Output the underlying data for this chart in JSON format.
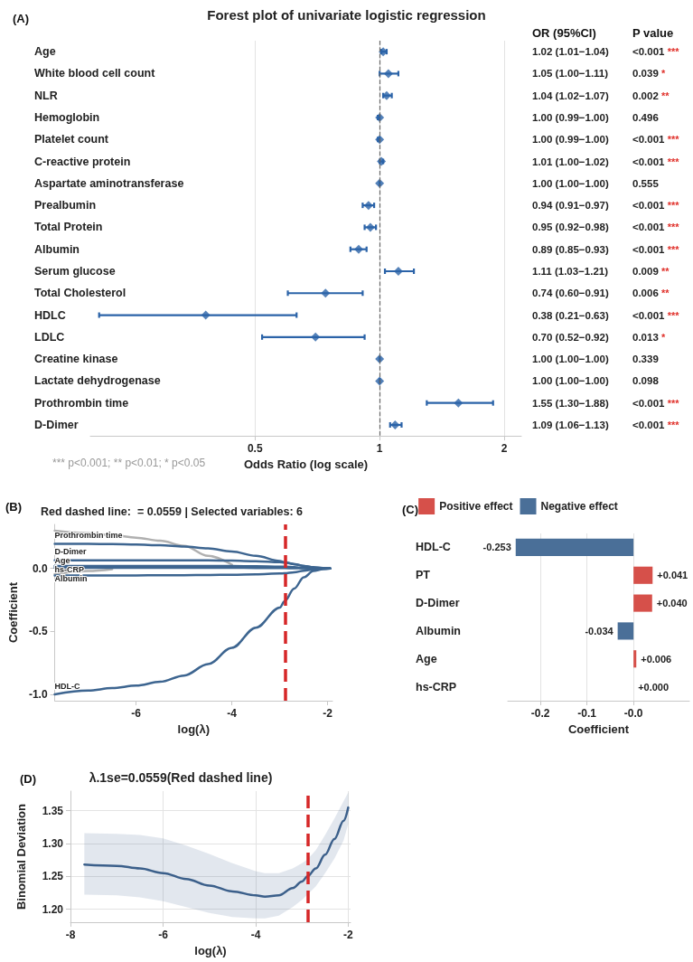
{
  "chart_data": [
    {
      "type": "scatter",
      "orientation": "horizontal",
      "title": "Forest plot of univariate logistic regression",
      "xlabel": "Odds Ratio (log scale)",
      "categories": [
        "Age",
        "White blood cell count",
        "NLR",
        "Hemoglobin",
        "Platelet count",
        "C-reactive protein",
        "Aspartate aminotransferase",
        "Prealbumin",
        "Total Protein",
        "Albumin",
        "Serum glucose",
        "Total Cholesterol",
        "HDLC",
        "LDLC",
        "Creatine kinase",
        "Lactate dehydrogenase",
        "Prothrombin time",
        "D-Dimer"
      ],
      "values": [
        1.02,
        1.05,
        1.04,
        1.0,
        1.0,
        1.01,
        1.0,
        0.94,
        0.95,
        0.89,
        1.11,
        0.74,
        0.38,
        0.7,
        1.0,
        1.0,
        1.55,
        1.09
      ],
      "errors": [
        [
          1.01,
          1.04
        ],
        [
          1.0,
          1.11
        ],
        [
          1.02,
          1.07
        ],
        [
          0.99,
          1.0
        ],
        [
          0.99,
          1.0
        ],
        [
          1.0,
          1.02
        ],
        [
          1.0,
          1.0
        ],
        [
          0.91,
          0.97
        ],
        [
          0.92,
          0.98
        ],
        [
          0.85,
          0.93
        ],
        [
          1.03,
          1.21
        ],
        [
          0.6,
          0.91
        ],
        [
          0.21,
          0.63
        ],
        [
          0.52,
          0.92
        ],
        [
          1.0,
          1.0
        ],
        [
          1.0,
          1.0
        ],
        [
          1.3,
          1.88
        ],
        [
          1.06,
          1.13
        ]
      ],
      "value_labels": [
        "1.02 (1.01−1.04)",
        "1.05 (1.00−1.11)",
        "1.04 (1.02−1.07)",
        "1.00 (0.99−1.00)",
        "1.00 (0.99−1.00)",
        "1.01 (1.00−1.02)",
        "1.00 (1.00−1.00)",
        "0.94 (0.91−0.97)",
        "0.95 (0.92−0.98)",
        "0.89 (0.85−0.93)",
        "1.11 (1.03−1.21)",
        "0.74 (0.60−0.91)",
        "0.38 (0.21−0.63)",
        "0.70 (0.52−0.92)",
        "1.00 (1.00−1.00)",
        "1.00 (1.00−1.00)",
        "1.55 (1.30−1.88)",
        "1.09 (1.06−1.13)"
      ],
      "y2_categories": [
        "<0.001 ***",
        "0.039 *",
        "0.002 **",
        "0.496",
        "<0.001 ***",
        "<0.001 ***",
        "0.555",
        "<0.001 ***",
        "<0.001 ***",
        "<0.001 ***",
        "0.009 **",
        "0.006 **",
        "<0.001 ***",
        "0.013 *",
        "0.339",
        "0.098",
        "<0.001 ***",
        "<0.001 ***"
      ],
      "color": "#2b63a8",
      "marker": "diamond",
      "log": "x",
      "xlim": [
        0.2,
        2.2
      ],
      "xticks": [
        0.5,
        1,
        2
      ],
      "grid": "x",
      "ref_lines": [
        {
          "axis": "x",
          "value": 1,
          "color": "#666666",
          "line_style": "dashed"
        }
      ],
      "annotations": [
        "(A)",
        "OR (95%CI)",
        "P value",
        "*** p<0.001; ** p<0.01; * p<0.05"
      ]
    },
    {
      "type": "line",
      "title": "Red dashed line:  = 0.0559 | Selected variables: 6",
      "xlabel": "log(λ)",
      "ylabel": "Coefficient",
      "x": [
        -7.7,
        -7,
        -6.5,
        -6,
        -5.5,
        -5,
        -4.5,
        -4,
        -3.5,
        -3,
        -2.9,
        -2.7,
        -2.5,
        -2.3,
        -2.1,
        -1.95
      ],
      "series": [
        {
          "color": "#b0b0b0",
          "values": [
            0.3,
            0.28,
            0.265,
            0.245,
            0.22,
            0.18,
            0.1,
            0.03,
            null,
            null,
            null,
            null,
            null,
            null,
            null,
            null
          ]
        },
        {
          "color": "#b0b0b0",
          "values": [
            -0.045,
            -0.02,
            -0.005,
            null,
            null,
            null,
            null,
            null,
            null,
            null,
            null,
            null,
            null,
            null,
            null,
            null
          ]
        },
        {
          "name": "Prothrombin time",
          "color": "#3d6590",
          "values": [
            0.195,
            0.195,
            0.193,
            0.19,
            0.185,
            0.175,
            0.16,
            0.135,
            0.1,
            0.06,
            0.05,
            0.035,
            0.02,
            0.01,
            0.003,
            0
          ]
        },
        {
          "name": "D-Dimer",
          "color": "#3d6590",
          "values": [
            0.065,
            0.065,
            0.065,
            0.065,
            0.065,
            0.065,
            0.064,
            0.062,
            0.058,
            0.05,
            0.047,
            0.035,
            0.02,
            0.008,
            0.002,
            0
          ]
        },
        {
          "name": "Age",
          "color": "#3d6590",
          "values": [
            0.02,
            0.02,
            0.02,
            0.02,
            0.02,
            0.02,
            0.02,
            0.019,
            0.018,
            0.015,
            0.014,
            0.01,
            0.006,
            0.002,
            0,
            0
          ]
        },
        {
          "name": "hs-CRP",
          "color": "#3d6590",
          "values": [
            0.005,
            0.005,
            0.005,
            0.005,
            0.005,
            0.005,
            0.005,
            0.005,
            0.004,
            0.003,
            0.003,
            0.002,
            0.001,
            0,
            0,
            0
          ]
        },
        {
          "name": "Albumin",
          "color": "#3d6590",
          "values": [
            -0.055,
            -0.055,
            -0.055,
            -0.055,
            -0.054,
            -0.053,
            -0.052,
            -0.05,
            -0.047,
            -0.04,
            -0.038,
            -0.03,
            -0.018,
            -0.008,
            -0.002,
            0
          ]
        },
        {
          "name": "HDL-C",
          "color": "#3d6590",
          "values": [
            -1.0,
            -0.97,
            -0.95,
            -0.93,
            -0.9,
            -0.85,
            -0.76,
            -0.63,
            -0.47,
            -0.31,
            -0.26,
            -0.16,
            -0.07,
            -0.02,
            -0.005,
            0
          ]
        }
      ],
      "xlim": [
        -7.7,
        -1.9
      ],
      "xticks": [
        -6,
        -4,
        -2
      ],
      "ylim": [
        -1.05,
        0.35
      ],
      "yticks": [
        {
          "value": -1,
          "label": "-1.0"
        },
        {
          "value": -0.5,
          "label": "-0.5"
        },
        {
          "value": 0,
          "label": "0.0"
        }
      ],
      "marker": "none",
      "ref_lines": [
        {
          "axis": "x",
          "value": -2.88,
          "color": "#d62728",
          "line_style": "dashed"
        }
      ],
      "annotations": [
        "(B)"
      ]
    },
    {
      "type": "bar",
      "orientation": "horizontal",
      "xlabel": "Coefficient",
      "categories": [
        "HDL-C",
        "PT",
        "D-Dimer",
        "Albumin",
        "Age",
        "hs-CRP"
      ],
      "series": [
        {
          "name": "Positive effect",
          "color": "#d6504a",
          "values": [
            null,
            0.041,
            0.04,
            null,
            0.006,
            0.0
          ],
          "value_labels": [
            null,
            "+0.041",
            "+0.040",
            null,
            "+0.006",
            "+0.000"
          ]
        },
        {
          "name": "Negative effect",
          "color": "#4a6f98",
          "values": [
            -0.253,
            null,
            null,
            -0.034,
            null,
            null
          ],
          "value_labels": [
            "-0.253",
            null,
            null,
            "-0.034",
            null,
            null
          ]
        }
      ],
      "xlim": [
        -0.27,
        0.12
      ],
      "xticks": [
        -0.2,
        -0.1,
        {
          "value": 0,
          "label": "-0.0"
        }
      ],
      "grid": "x",
      "legend": "top",
      "annotations": [
        "(C)"
      ]
    },
    {
      "type": "line",
      "title": "λ.1se=0.0559(Red dashed line)",
      "xlabel": "log(λ)",
      "ylabel": "Binomial Deviation",
      "x": [
        -7.7,
        -7,
        -6.5,
        -6,
        -5.5,
        -5,
        -4.5,
        -4,
        -3.8,
        -3.5,
        -3.2,
        -3,
        -2.88,
        -2.7,
        -2.5,
        -2.3,
        -2.1,
        -2
      ],
      "series": [
        {
          "color": "#3b5f8a",
          "values": [
            1.268,
            1.266,
            1.262,
            1.255,
            1.246,
            1.236,
            1.227,
            1.221,
            1.219,
            1.221,
            1.232,
            1.242,
            1.25,
            1.262,
            1.283,
            1.307,
            1.335,
            1.355
          ],
          "upper": [
            1.316,
            1.315,
            1.313,
            1.308,
            1.297,
            1.284,
            1.27,
            1.258,
            1.255,
            1.255,
            1.262,
            1.27,
            1.276,
            1.29,
            1.313,
            1.338,
            1.365,
            1.378
          ],
          "lower": [
            1.222,
            1.221,
            1.218,
            1.212,
            1.203,
            1.194,
            1.188,
            1.186,
            1.186,
            1.19,
            1.203,
            1.214,
            1.222,
            1.235,
            1.255,
            1.277,
            1.305,
            1.33
          ]
        }
      ],
      "xlim": [
        -8,
        -1.95
      ],
      "xticks": [
        -8,
        -6,
        -4,
        -2
      ],
      "ylim": [
        1.18,
        1.38
      ],
      "yticks": [
        {
          "value": 1.2,
          "label": "1.20"
        },
        {
          "value": 1.25,
          "label": "1.25"
        },
        {
          "value": 1.3,
          "label": "1.30"
        },
        {
          "value": 1.35,
          "label": "1.35"
        }
      ],
      "grid": true,
      "marker": "none",
      "ref_lines": [
        {
          "axis": "x",
          "value": -2.88,
          "color": "#d62728",
          "line_style": "dashed"
        }
      ],
      "annotations": [
        "(D)"
      ]
    }
  ]
}
